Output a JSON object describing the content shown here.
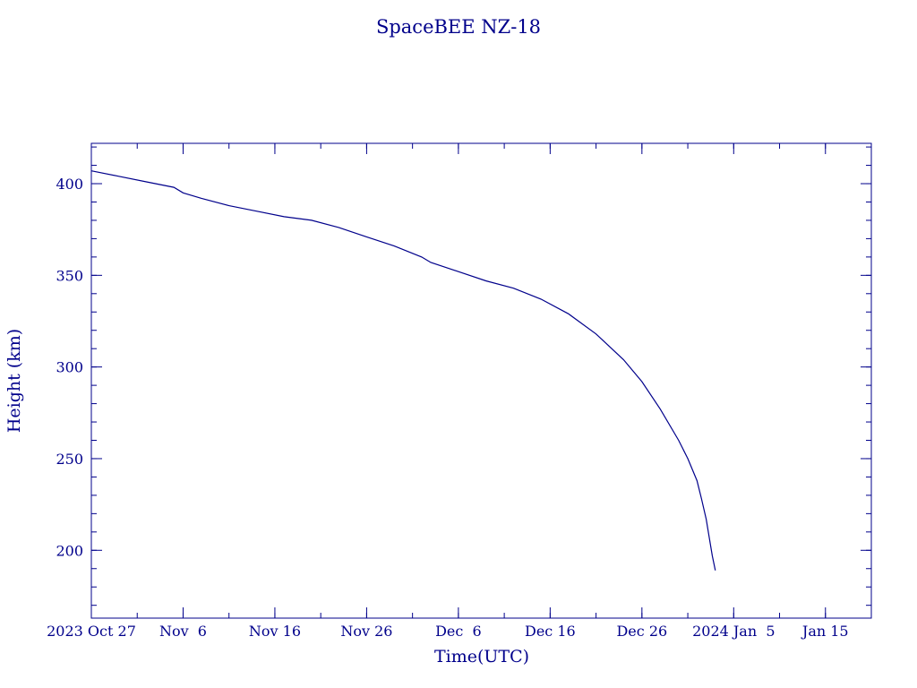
{
  "chart_data": {
    "type": "line",
    "title": "SpaceBEE NZ-18",
    "xlabel": "Time(UTC)",
    "ylabel": "Height (km)",
    "colors": {
      "line": "#00008b",
      "axes": "#00008b",
      "text": "#00008b"
    },
    "xlim": [
      "2023-10-27",
      "2024-01-20"
    ],
    "ylim": [
      163,
      422
    ],
    "x_ticks": [
      {
        "date": "2023-10-27",
        "label": "2023 Oct 27"
      },
      {
        "date": "2023-11-06",
        "label": "Nov  6"
      },
      {
        "date": "2023-11-16",
        "label": "Nov 16"
      },
      {
        "date": "2023-11-26",
        "label": "Nov 26"
      },
      {
        "date": "2023-12-06",
        "label": "Dec  6"
      },
      {
        "date": "2023-12-16",
        "label": "Dec 16"
      },
      {
        "date": "2023-12-26",
        "label": "Dec 26"
      },
      {
        "date": "2024-01-05",
        "label": "2024 Jan  5"
      },
      {
        "date": "2024-01-15",
        "label": "Jan 15"
      }
    ],
    "x_minor_tick_days": 5,
    "y_ticks": [
      200,
      250,
      300,
      350,
      400
    ],
    "y_minor_step": 10,
    "series": [
      {
        "x": [
          "2023-10-27",
          "2023-10-30",
          "2023-11-02",
          "2023-11-05",
          "2023-11-06",
          "2023-11-08",
          "2023-11-11",
          "2023-11-14",
          "2023-11-17",
          "2023-11-20",
          "2023-11-23",
          "2023-11-26",
          "2023-11-29",
          "2023-12-02",
          "2023-12-03",
          "2023-12-06",
          "2023-12-09",
          "2023-12-12",
          "2023-12-15",
          "2023-12-18",
          "2023-12-21",
          "2023-12-24",
          "2023-12-26",
          "2023-12-28",
          "2023-12-30",
          "2023-12-31",
          "2024-01-01",
          "2024-01-01 12:00",
          "2024-01-02",
          "2024-01-02 08:00",
          "2024-01-02 16:00",
          "2024-01-03"
        ],
        "y": [
          407,
          404,
          401,
          398,
          395,
          392,
          388,
          385,
          382,
          380,
          376,
          371,
          366,
          360,
          357,
          352,
          347,
          343,
          337,
          329,
          318,
          304,
          292,
          277,
          260,
          250,
          238,
          228,
          217,
          207,
          197,
          189
        ]
      }
    ]
  }
}
